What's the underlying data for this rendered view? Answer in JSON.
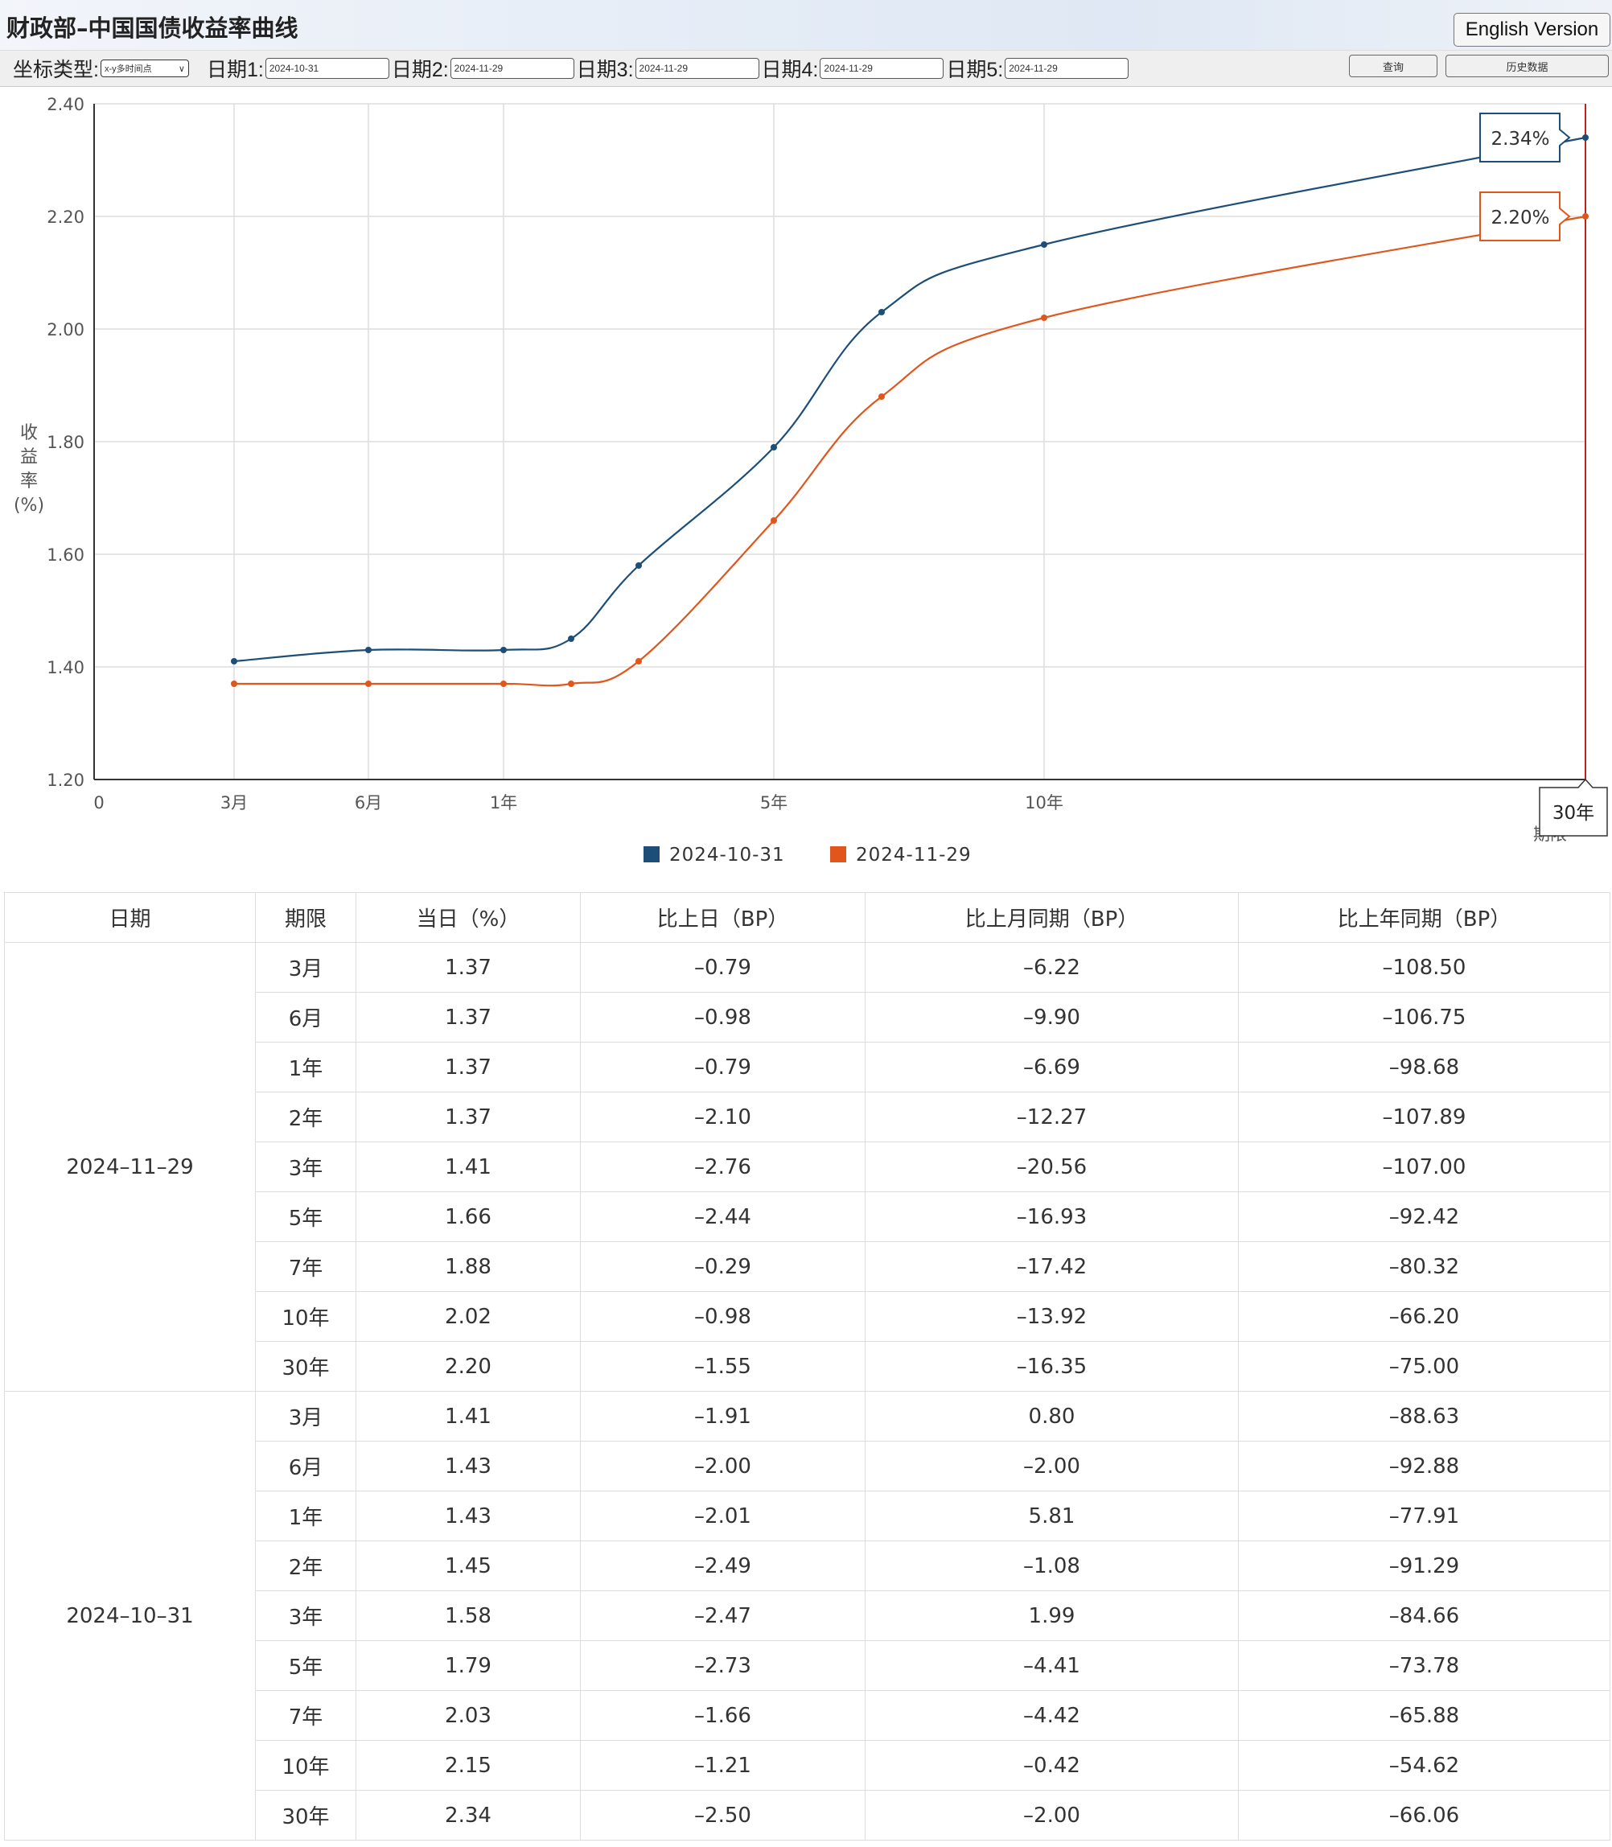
{
  "header": {
    "title": "财政部–中国国债收益率曲线",
    "english_version": "English Version"
  },
  "toolbar": {
    "axis_type_label": "坐标类型:",
    "axis_type_value": "x-y多时间点",
    "dates": [
      {
        "label": "日期1:",
        "value": "2024-10-31"
      },
      {
        "label": "日期2:",
        "value": "2024-11-29"
      },
      {
        "label": "日期3:",
        "value": "2024-11-29"
      },
      {
        "label": "日期4:",
        "value": "2024-11-29"
      },
      {
        "label": "日期5:",
        "value": "2024-11-29"
      }
    ],
    "query": "查询",
    "history": "历史数据"
  },
  "chart_data": {
    "type": "line",
    "ylabel": "收益率(%)",
    "xlabel": "期限",
    "ylim": [
      1.2,
      2.4
    ],
    "yticks": [
      "1.20",
      "1.40",
      "1.60",
      "1.80",
      "2.00",
      "2.20",
      "2.40"
    ],
    "xticks": [
      {
        "label": "0",
        "years": 0
      },
      {
        "label": "3月",
        "years": 0.25
      },
      {
        "label": "6月",
        "years": 0.5
      },
      {
        "label": "1年",
        "years": 1
      },
      {
        "label": "5年",
        "years": 5
      },
      {
        "label": "10年",
        "years": 10
      }
    ],
    "x_years": [
      0.25,
      0.5,
      1,
      2,
      3,
      5,
      7,
      10,
      30
    ],
    "series": [
      {
        "name": "2024-10-31",
        "color": "#1c4e78",
        "values": [
          1.41,
          1.43,
          1.43,
          1.45,
          1.58,
          1.79,
          2.03,
          2.15,
          2.34
        ]
      },
      {
        "name": "2024-11-29",
        "color": "#e0561b",
        "values": [
          1.37,
          1.37,
          1.37,
          1.37,
          1.41,
          1.66,
          1.88,
          2.02,
          2.2
        ]
      }
    ],
    "tooltip": {
      "x_label": "30年",
      "labels": [
        "2.34%",
        "2.20%"
      ]
    },
    "grid": true,
    "legend": "bottom-center"
  },
  "table": {
    "headers": [
      "日期",
      "期限",
      "当日（%）",
      "比上日（BP）",
      "比上月同期（BP）",
      "比上年同期（BP）"
    ],
    "groups": [
      {
        "date": "2024–11–29",
        "rows": [
          [
            "3月",
            "1.37",
            "–0.79",
            "–6.22",
            "–108.50"
          ],
          [
            "6月",
            "1.37",
            "–0.98",
            "–9.90",
            "–106.75"
          ],
          [
            "1年",
            "1.37",
            "–0.79",
            "–6.69",
            "–98.68"
          ],
          [
            "2年",
            "1.37",
            "–2.10",
            "–12.27",
            "–107.89"
          ],
          [
            "3年",
            "1.41",
            "–2.76",
            "–20.56",
            "–107.00"
          ],
          [
            "5年",
            "1.66",
            "–2.44",
            "–16.93",
            "–92.42"
          ],
          [
            "7年",
            "1.88",
            "–0.29",
            "–17.42",
            "–80.32"
          ],
          [
            "10年",
            "2.02",
            "–0.98",
            "–13.92",
            "–66.20"
          ],
          [
            "30年",
            "2.20",
            "–1.55",
            "–16.35",
            "–75.00"
          ]
        ]
      },
      {
        "date": "2024–10–31",
        "rows": [
          [
            "3月",
            "1.41",
            "–1.91",
            "0.80",
            "–88.63"
          ],
          [
            "6月",
            "1.43",
            "–2.00",
            "–2.00",
            "–92.88"
          ],
          [
            "1年",
            "1.43",
            "–2.01",
            "5.81",
            "–77.91"
          ],
          [
            "2年",
            "1.45",
            "–2.49",
            "–1.08",
            "–91.29"
          ],
          [
            "3年",
            "1.58",
            "–2.47",
            "1.99",
            "–84.66"
          ],
          [
            "5年",
            "1.79",
            "–2.73",
            "–4.41",
            "–73.78"
          ],
          [
            "7年",
            "2.03",
            "–1.66",
            "–4.42",
            "–65.88"
          ],
          [
            "10年",
            "2.15",
            "–1.21",
            "–0.42",
            "–54.62"
          ],
          [
            "30年",
            "2.34",
            "–2.50",
            "–2.00",
            "–66.06"
          ]
        ]
      }
    ]
  }
}
